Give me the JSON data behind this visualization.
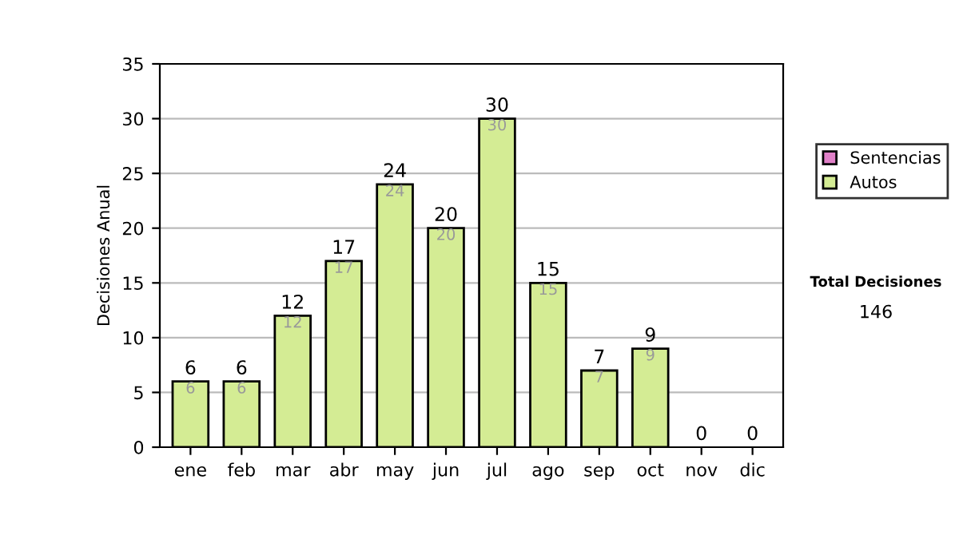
{
  "chart_data": {
    "type": "bar",
    "stacked": true,
    "ylabel": "Decisiones Anual",
    "categories": [
      "ene",
      "feb",
      "mar",
      "abr",
      "may",
      "jun",
      "jul",
      "ago",
      "sep",
      "oct",
      "nov",
      "dic"
    ],
    "series": [
      {
        "name": "Sentencias",
        "color": "#e080c8",
        "values": [
          0,
          0,
          0,
          0,
          0,
          0,
          0,
          0,
          0,
          0,
          0,
          0
        ]
      },
      {
        "name": "Autos",
        "color": "#d4ec94",
        "values": [
          6,
          6,
          12,
          17,
          24,
          20,
          30,
          15,
          7,
          9,
          0,
          0
        ],
        "value_labels": [
          "6",
          "6",
          "12",
          "17",
          "24",
          "20",
          "30",
          "15",
          "7",
          "9",
          null,
          null
        ]
      }
    ],
    "totals": [
      "6",
      "6",
      "12",
      "17",
      "24",
      "20",
      "30",
      "15",
      "7",
      "9",
      "0",
      "0"
    ],
    "ylim": [
      0,
      35
    ],
    "yticks": [
      0,
      5,
      10,
      15,
      20,
      25,
      30,
      35
    ],
    "grid": "y",
    "legend": "right",
    "annotations": [
      "Total Decisiones",
      "146"
    ]
  }
}
